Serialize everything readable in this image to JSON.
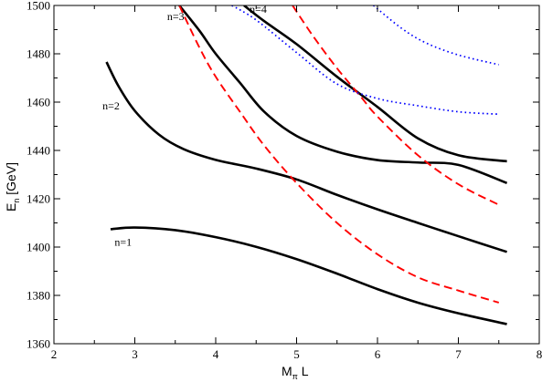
{
  "chart_data": {
    "type": "line",
    "title": "",
    "xlabel": {
      "main": "M",
      "sub": "π",
      "tail": " L"
    },
    "ylabel": {
      "main": "E",
      "sub": "n",
      "tail": " [GeV]"
    },
    "xlim": [
      2,
      8
    ],
    "ylim": [
      1360,
      1500
    ],
    "xticks": [
      2,
      3,
      4,
      5,
      6,
      7,
      8
    ],
    "yticks": [
      1360,
      1380,
      1400,
      1420,
      1440,
      1460,
      1480,
      1500
    ],
    "grid": false,
    "series": [
      {
        "style": "solid",
        "color": "#000000",
        "x": [
          2.7,
          3.0,
          3.5,
          4.0,
          4.5,
          5.0,
          5.5,
          6.0,
          6.5,
          7.0,
          7.6
        ],
        "y": [
          1407.4,
          1408.1,
          1407.0,
          1404.1,
          1400.1,
          1395.0,
          1389.0,
          1382.6,
          1377.0,
          1372.6,
          1368.1
        ]
      },
      {
        "style": "solid",
        "color": "#000000",
        "x": [
          2.65,
          2.8,
          3.0,
          3.3,
          3.6,
          4.0,
          4.5,
          5.0,
          5.5,
          6.0,
          6.5,
          7.0,
          7.6
        ],
        "y": [
          1476.6,
          1466.5,
          1456.4,
          1446.5,
          1440.6,
          1436.1,
          1432.5,
          1428.0,
          1421.6,
          1415.6,
          1410.0,
          1404.5,
          1398.0
        ]
      },
      {
        "style": "solid",
        "color": "#000000",
        "x": [
          3.55,
          3.8,
          4.0,
          4.3,
          4.6,
          5.0,
          5.5,
          6.0,
          6.5,
          7.0,
          7.6
        ],
        "y": [
          1500.0,
          1489.5,
          1480.0,
          1468.0,
          1456.0,
          1446.0,
          1439.5,
          1436.0,
          1435.0,
          1434.0,
          1426.5
        ]
      },
      {
        "style": "solid",
        "color": "#000000",
        "x": [
          4.35,
          4.6,
          5.0,
          5.5,
          6.0,
          6.5,
          7.0,
          7.6
        ],
        "y": [
          1500.0,
          1493.5,
          1484.0,
          1470.5,
          1458.0,
          1445.0,
          1438.0,
          1435.5
        ]
      },
      {
        "style": "dashed",
        "color": "#ff0000",
        "x": [
          3.55,
          3.8,
          4.0,
          4.3,
          4.6,
          5.0,
          5.5,
          6.0,
          6.5,
          7.0,
          7.5
        ],
        "y": [
          1500.0,
          1482.5,
          1470.5,
          1456.0,
          1442.0,
          1426.5,
          1410.0,
          1397.0,
          1387.5,
          1382.0,
          1377.0
        ]
      },
      {
        "style": "dashed",
        "color": "#ff0000",
        "x": [
          4.95,
          5.2,
          5.5,
          5.8,
          6.0,
          6.5,
          7.0,
          7.5
        ],
        "y": [
          1500.0,
          1487.5,
          1474.0,
          1462.0,
          1454.0,
          1438.0,
          1426.0,
          1417.5
        ]
      },
      {
        "style": "dotted",
        "color": "#0000ff",
        "x": [
          4.2,
          4.5,
          5.0,
          5.5,
          6.0,
          6.5,
          7.0,
          7.5
        ],
        "y": [
          1500.0,
          1494.0,
          1480.5,
          1467.5,
          1461.5,
          1458.5,
          1456.0,
          1455.0
        ]
      },
      {
        "style": "dotted",
        "color": "#0000ff",
        "x": [
          5.95,
          6.3,
          6.6,
          7.0,
          7.5
        ],
        "y": [
          1500.0,
          1490.5,
          1484.5,
          1479.5,
          1475.5
        ]
      }
    ],
    "annotations": [
      {
        "text": "n=1",
        "x": 2.75,
        "y": 1400.5
      },
      {
        "text": "n=2",
        "x": 2.6,
        "y": 1457
      },
      {
        "text": "n=3",
        "x": 3.4,
        "y": 1494
      },
      {
        "text": "n=4",
        "x": 4.42,
        "y": 1497
      }
    ]
  }
}
